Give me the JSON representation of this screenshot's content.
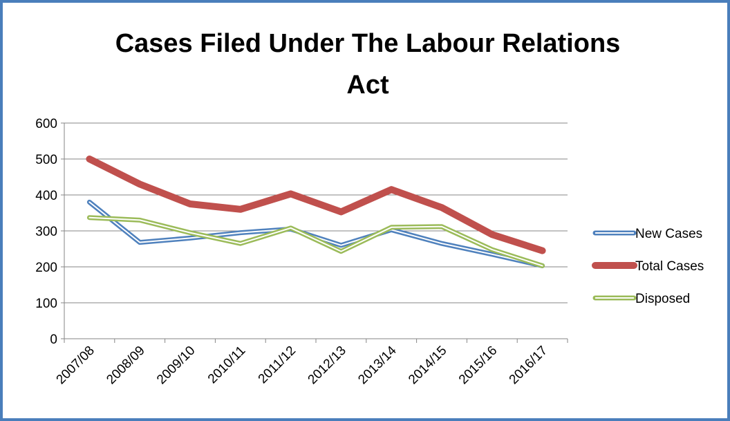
{
  "title_line_1": "Cases Filed Under The Labour Relations",
  "title_line_2": "Act",
  "colors": {
    "border": "#4a7ebb"
  },
  "chart_data": {
    "type": "line",
    "title": "Cases Filed Under The Labour Relations Act",
    "categories": [
      "2007/08",
      "2008/09",
      "2009/10",
      "2010/11",
      "2011/12",
      "2012/13",
      "2013/14",
      "2014/15",
      "2015/16",
      "2016/17"
    ],
    "ylim": [
      0,
      600
    ],
    "yticks": [
      0,
      100,
      200,
      300,
      400,
      500,
      600
    ],
    "grid": true,
    "legend": "right",
    "series": [
      {
        "name": "New Cases",
        "values": [
          380,
          268,
          280,
          295,
          305,
          260,
          303,
          265,
          235,
          203
        ],
        "color": "#4f81bd"
      },
      {
        "name": "Total Cases",
        "values": [
          500,
          430,
          375,
          360,
          403,
          353,
          415,
          365,
          290,
          245
        ],
        "color": "#c0504d"
      },
      {
        "name": "Disposed",
        "values": [
          337,
          330,
          295,
          265,
          308,
          243,
          310,
          312,
          248,
          203
        ],
        "color": "#9bbb59"
      }
    ]
  }
}
